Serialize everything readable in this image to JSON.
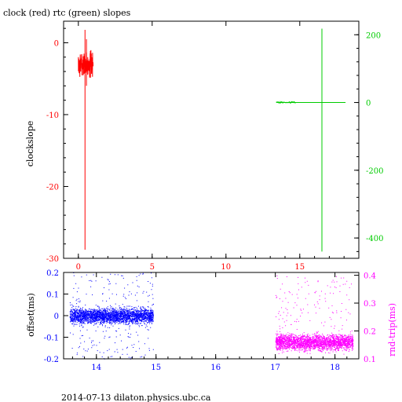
{
  "title": "clock (red) rtc (green) slopes",
  "footer": "2014-07-13  dilaton.physics.ubc.ca",
  "colors": {
    "clock": "#ff0000",
    "rtc": "#00cc00",
    "offset": "#0000ff",
    "rnd_trip": "#ff00ff",
    "axis": "#000000"
  },
  "chart_data": [
    {
      "type": "line",
      "title": "clock (red) rtc (green) slopes",
      "xlabel": "",
      "xlim": [
        -1,
        19
      ],
      "x_ticks": [
        0,
        5,
        10,
        15
      ],
      "x_tick_color": "#ff0000",
      "grid": false,
      "left_axis": {
        "label": "clockslope",
        "color": "#ff0000",
        "ylim": [
          -30,
          3
        ],
        "ticks": [
          0,
          -10,
          -20,
          -30
        ]
      },
      "right_axis": {
        "label": "",
        "color": "#00cc00",
        "ylim": [
          -460,
          240
        ],
        "ticks": [
          200,
          0,
          -200,
          -400
        ]
      },
      "series": [
        {
          "name": "clock",
          "axis": "left",
          "color": "#ff0000",
          "noise_band": {
            "x_range": [
              0.0,
              1.0
            ],
            "y_center": -3.0,
            "y_spread": 1.2
          },
          "spikes": [
            {
              "x": 0.45,
              "y_min": -28.8,
              "y_max": 1.8
            },
            {
              "x": 0.55,
              "y_min": -6.0,
              "y_max": 0.5
            }
          ]
        },
        {
          "name": "rtc",
          "axis": "right",
          "color": "#00cc00",
          "segment": {
            "x_range": [
              13.4,
              18.1
            ],
            "y": 0
          },
          "spikes": [
            {
              "x": 16.5,
              "y_min": -440,
              "y_max": 218
            }
          ]
        }
      ]
    },
    {
      "type": "scatter",
      "xlabel": "",
      "xlim": [
        13.45,
        18.4
      ],
      "x_ticks": [
        14,
        15,
        16,
        17,
        18
      ],
      "x_tick_color": "#0000ff",
      "grid": false,
      "left_axis": {
        "label": "offset(ms)",
        "color": "#0000ff",
        "ylim": [
          -0.2,
          0.2
        ],
        "ticks": [
          0.2,
          0.1,
          0,
          -0.1,
          -0.2
        ]
      },
      "right_axis": {
        "label": "rnd-trip(ms)",
        "color": "#ff00ff",
        "ylim": [
          0.1,
          0.41
        ],
        "ticks": [
          0.4,
          0.3,
          0.2,
          0.1
        ]
      },
      "series": [
        {
          "name": "offset",
          "axis": "left",
          "color": "#0000ff",
          "x_range": [
            13.55,
            14.95
          ],
          "y_center": 0.0,
          "y_spread": 0.025,
          "outlier_range": [
            -0.2,
            0.2
          ]
        },
        {
          "name": "rnd-trip",
          "axis": "right",
          "color": "#ff00ff",
          "x_range": [
            17.0,
            18.3
          ],
          "y_center": 0.16,
          "y_spread": 0.02,
          "outlier_range": [
            0.2,
            0.4
          ]
        }
      ]
    }
  ]
}
